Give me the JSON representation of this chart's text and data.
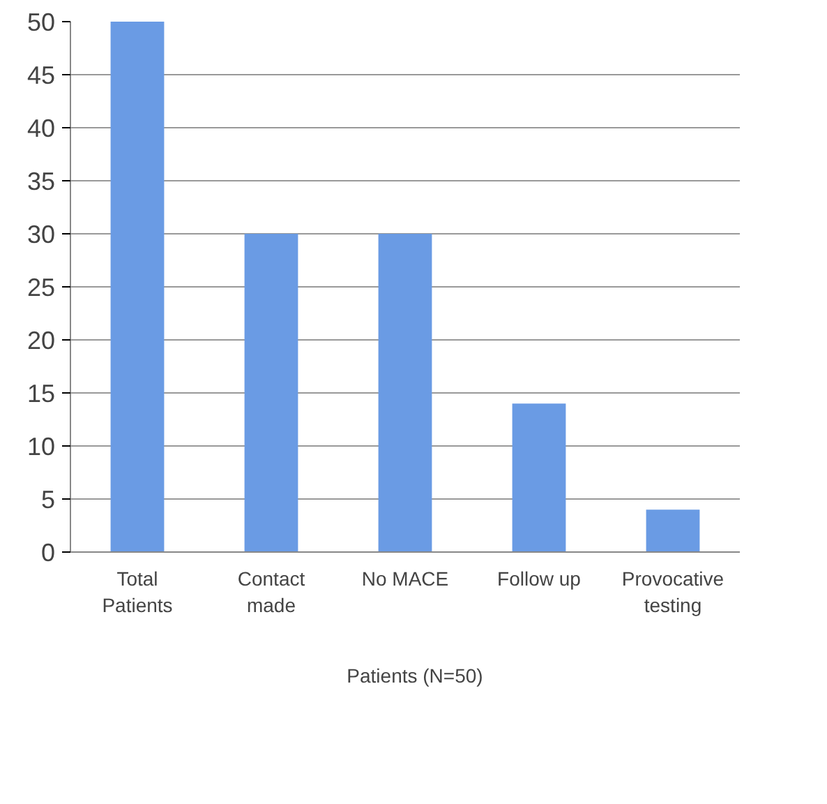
{
  "chart_data": {
    "type": "bar",
    "categories": [
      "Total\nPatients",
      "Contact\nmade",
      "No MACE",
      "Follow up",
      "Provocative\ntesting"
    ],
    "series": [
      {
        "name": "Patients (N=50)",
        "color": "#6a9be4",
        "values": [
          50,
          30,
          30,
          14,
          4
        ]
      }
    ],
    "ylim": [
      0,
      50
    ],
    "yticks": [
      0,
      5,
      10,
      15,
      20,
      25,
      30,
      35,
      40,
      45,
      50
    ],
    "grid": "y",
    "legend": "bottom"
  }
}
